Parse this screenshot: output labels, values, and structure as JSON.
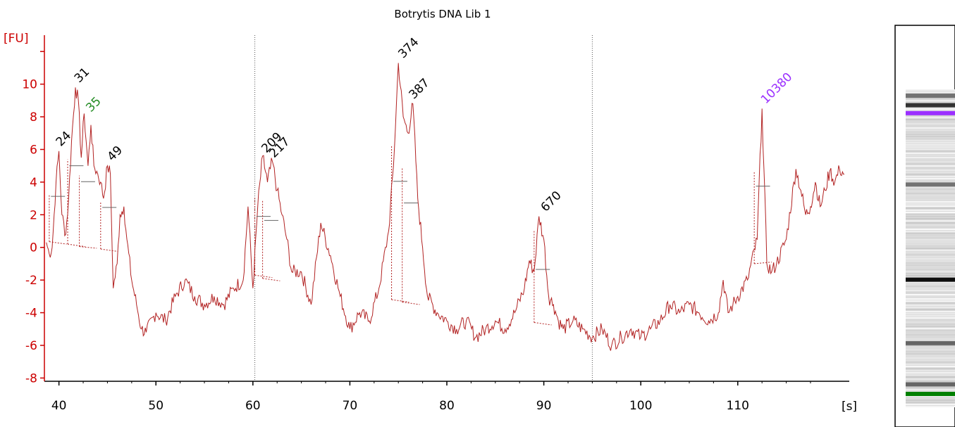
{
  "chart_data": {
    "type": "line",
    "title": "Botrytis DNA Lib 1",
    "ylabel": "[FU]",
    "xlabel": "[s]",
    "xlim": [
      38.5,
      121.5
    ],
    "ylim": [
      -8.2,
      13.0
    ],
    "x_ticks": [
      40,
      50,
      60,
      70,
      80,
      90,
      100,
      110
    ],
    "y_ticks": [
      -8,
      -6,
      -4,
      -2,
      0,
      2,
      4,
      6,
      8,
      10
    ],
    "y_minor_ticks": [
      12
    ],
    "axis_color": "#cc0000",
    "line_color": "#b22222",
    "markers": [
      60.2,
      95.0
    ],
    "series": [
      {
        "x": [
          38.7,
          39.0,
          39.3,
          39.7,
          40.0,
          40.3,
          40.7,
          41.0,
          41.3,
          41.7,
          42.0,
          42.3,
          42.6,
          43.0,
          43.3,
          43.6,
          44.0,
          44.3,
          44.6,
          45.0,
          45.3,
          45.6,
          46.0,
          46.3,
          46.7,
          47.0,
          47.5,
          48.0,
          48.5,
          49.0,
          50.0,
          51.0,
          52.0,
          53.0,
          54.0,
          55.0,
          56.0,
          57.0,
          58.0,
          59.0,
          59.5,
          60.0,
          60.5,
          61.0,
          61.5,
          62.0,
          62.5,
          63.0,
          63.5,
          64.0,
          65.0,
          66.0,
          67.0,
          68.0,
          69.0,
          70.0,
          71.0,
          72.0,
          73.0,
          74.0,
          74.5,
          75.0,
          75.5,
          76.0,
          76.5,
          77.0,
          77.5,
          78.0,
          79.0,
          80.0,
          81.0,
          82.0,
          83.0,
          84.0,
          85.0,
          86.0,
          87.0,
          88.0,
          88.5,
          89.0,
          89.5,
          90.0,
          90.5,
          91.0,
          91.5,
          92.0,
          93.0,
          94.0,
          95.0,
          96.0,
          97.0,
          98.0,
          99.0,
          100.0,
          101.0,
          102.0,
          103.0,
          104.0,
          105.0,
          106.0,
          107.0,
          108.0,
          108.5,
          109.0,
          109.5,
          110.0,
          111.0,
          112.0,
          112.5,
          113.0,
          113.5,
          114.0,
          115.0,
          116.0,
          116.5,
          117.0,
          117.5,
          118.0,
          118.5,
          119.0,
          119.5,
          120.0,
          120.5,
          121.0
        ],
        "y": [
          0.3,
          -0.4,
          0.0,
          4.0,
          5.9,
          2.0,
          0.8,
          3.0,
          6.5,
          9.8,
          9.0,
          5.5,
          8.2,
          5.0,
          7.5,
          5.0,
          4.5,
          4.0,
          3.0,
          5.0,
          4.5,
          -2.5,
          -1.0,
          2.0,
          2.5,
          0.5,
          -2.0,
          -3.5,
          -5.0,
          -5.2,
          -4.0,
          -4.5,
          -3.0,
          -2.0,
          -3.0,
          -3.5,
          -3.0,
          -3.5,
          -2.5,
          -2.0,
          2.5,
          -2.5,
          2.5,
          5.6,
          4.0,
          5.3,
          3.5,
          2.0,
          0.5,
          -1.5,
          -1.5,
          -3.5,
          1.5,
          -0.5,
          -3.0,
          -5.0,
          -4.0,
          -4.5,
          -2.5,
          1.0,
          5.0,
          11.3,
          8.0,
          7.0,
          8.8,
          3.0,
          0.0,
          -3.0,
          -4.0,
          -4.5,
          -5.0,
          -4.5,
          -5.5,
          -5.0,
          -4.5,
          -5.0,
          -4.0,
          -2.5,
          -0.8,
          -1.5,
          1.9,
          0.5,
          -3.0,
          -3.5,
          -4.5,
          -5.0,
          -4.5,
          -5.0,
          -5.5,
          -5.0,
          -6.0,
          -5.5,
          -5.0,
          -5.5,
          -5.0,
          -4.5,
          -3.5,
          -4.0,
          -3.5,
          -4.0,
          -4.5,
          -4.0,
          -2.0,
          -4.0,
          -3.5,
          -3.0,
          -2.0,
          0.5,
          8.5,
          -1.0,
          -1.5,
          -1.0,
          0.5,
          4.8,
          3.5,
          2.0,
          2.5,
          4.0,
          2.5,
          3.5,
          4.7,
          4.0,
          4.8,
          4.5
        ]
      }
    ],
    "peaks": [
      {
        "label": "24",
        "x": 39.9,
        "y": 5.9,
        "baseline_left": 0.35,
        "baseline_right": 0.2,
        "color": "#000000"
      },
      {
        "label": "31",
        "x": 41.8,
        "y": 9.8,
        "baseline_left": 0.2,
        "baseline_right": 0.05,
        "color": "#000000"
      },
      {
        "label": "35",
        "x": 43.0,
        "y": 8.0,
        "baseline_left": 0.05,
        "baseline_right": -0.05,
        "color": "#228b22"
      },
      {
        "label": "49",
        "x": 45.2,
        "y": 5.0,
        "baseline_left": -0.1,
        "baseline_right": -0.25,
        "color": "#000000"
      },
      {
        "label": "209",
        "x": 61.1,
        "y": 5.5,
        "baseline_left": -1.7,
        "baseline_right": -1.85,
        "color": "#000000"
      },
      {
        "label": "217",
        "x": 61.9,
        "y": 5.2,
        "baseline_left": -1.9,
        "baseline_right": -2.05,
        "color": "#000000"
      },
      {
        "label": "374",
        "x": 75.2,
        "y": 11.3,
        "baseline_left": -3.2,
        "baseline_right": -3.35,
        "color": "#000000"
      },
      {
        "label": "387",
        "x": 76.3,
        "y": 8.8,
        "baseline_left": -3.35,
        "baseline_right": -3.5,
        "color": "#000000"
      },
      {
        "label": "670",
        "x": 89.9,
        "y": 1.9,
        "baseline_left": -4.6,
        "baseline_right": -4.75,
        "color": "#000000"
      },
      {
        "label": "10380",
        "x": 112.6,
        "y": 8.5,
        "baseline_left": -1.0,
        "baseline_right": -0.9,
        "color": "#9b30ff"
      }
    ],
    "gel_bands": [
      {
        "pos": 0.02,
        "intensity": 0.55,
        "color": null
      },
      {
        "pos": 0.05,
        "intensity": 0.8,
        "color": null
      },
      {
        "pos": 0.075,
        "intensity": 0.6,
        "color": "#9b30ff"
      },
      {
        "pos": 0.3,
        "intensity": 0.55,
        "color": null
      },
      {
        "pos": 0.6,
        "intensity": 0.95,
        "color": null
      },
      {
        "pos": 0.8,
        "intensity": 0.6,
        "color": null
      },
      {
        "pos": 0.93,
        "intensity": 0.6,
        "color": null
      },
      {
        "pos": 0.96,
        "intensity": 0.7,
        "color": "#008000"
      }
    ]
  }
}
